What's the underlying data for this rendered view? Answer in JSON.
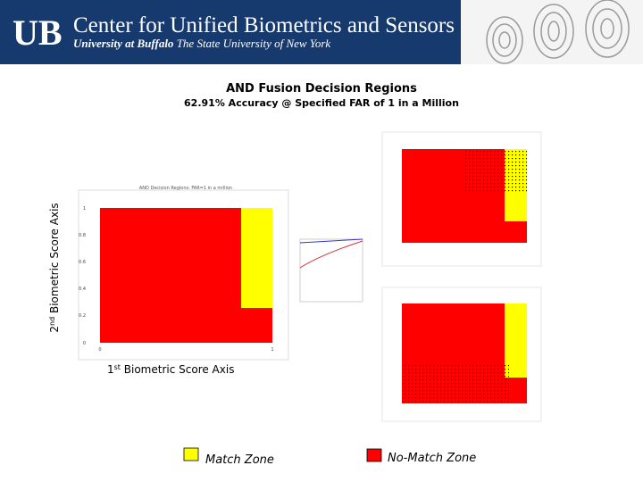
{
  "header": {
    "logo": "UB",
    "title": "Center for Unified Biometrics and Sensors",
    "subtitle_bold": "University at Buffalo",
    "subtitle_italic": " The State University of New York"
  },
  "slide": {
    "title": "AND Fusion Decision Regions",
    "subtitle": "62.91% Accuracy @ Specified FAR of 1 in a Million"
  },
  "main_plot": {
    "title": "AND Decision Regions: FAR=1 in a million",
    "y_ticks": [
      "1",
      "0.8",
      "0.6",
      "0.4",
      "0.2",
      "0"
    ],
    "x_ticks": [
      "0",
      "1"
    ]
  },
  "y_axis_label": {
    "number": "2",
    "suffix": "nd",
    "text": " Biometric Score Axis"
  },
  "x_axis_label": {
    "number": "1",
    "suffix": "st",
    "text": " Biometric Score Axis"
  },
  "legend": {
    "match": "Match Zone",
    "no_match": "No-Match Zone"
  }
}
